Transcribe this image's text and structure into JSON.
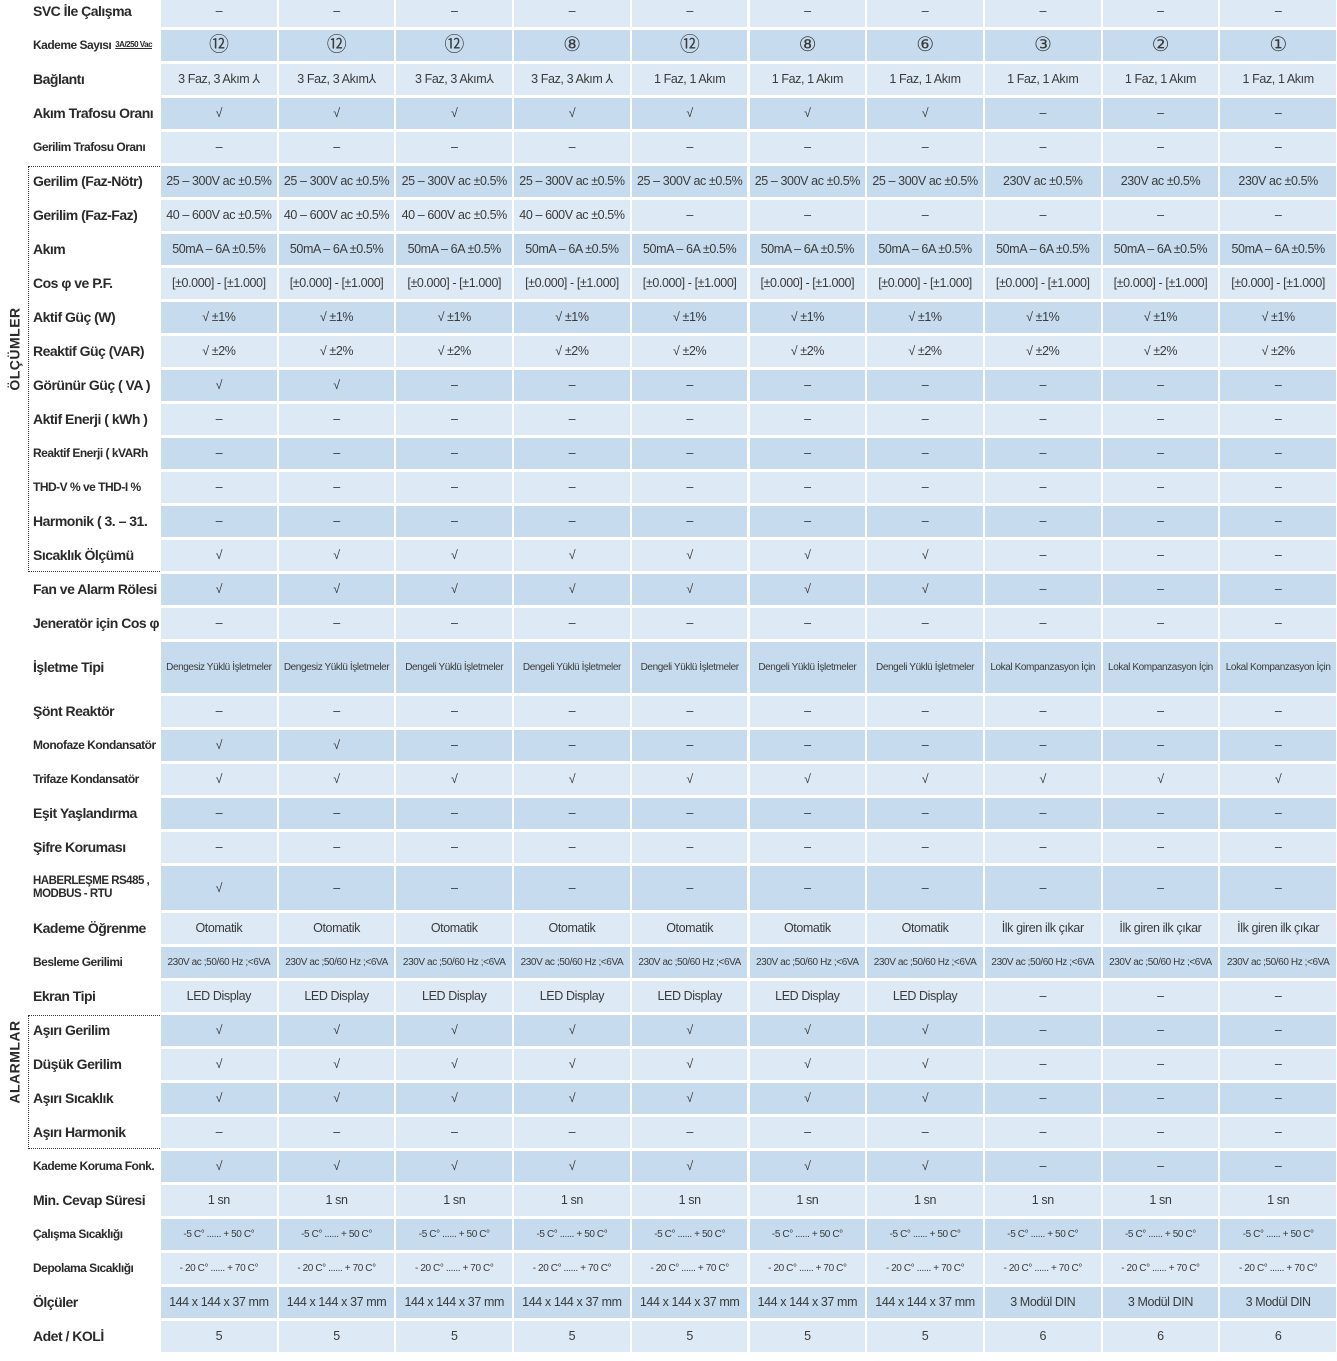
{
  "groups": [
    {
      "label": "ÖLÇÜMLER"
    },
    {
      "label": "ALARMLAR"
    }
  ],
  "table": {
    "rows": [
      {
        "label": "SVC İle Çalışma",
        "cells": [
          "–",
          "–",
          "–",
          "–",
          "–",
          "–",
          "–",
          "–",
          "–",
          "–"
        ]
      },
      {
        "label": "Kademe Sayısı",
        "note": "3A/250 Vac",
        "cells": [
          "⑫",
          "⑫",
          "⑫",
          "⑧",
          "⑫",
          "⑧",
          "⑥",
          "③",
          "②",
          "①"
        ]
      },
      {
        "label": "Bağlantı",
        "cells": [
          "3 Faz, 3 Akım ⅄",
          "3 Faz, 3 Akım⅄",
          "3 Faz, 3 Akım⅄",
          "3 Faz, 3 Akım ⅄",
          "1 Faz, 1 Akım",
          "1 Faz, 1 Akım",
          "1 Faz, 1 Akım",
          "1 Faz, 1 Akım",
          "1 Faz, 1 Akım",
          "1 Faz, 1 Akım"
        ]
      },
      {
        "label": "Akım Trafosu Oranı",
        "cells": [
          "√",
          "√",
          "√",
          "√",
          "√",
          "√",
          "√",
          "–",
          "–",
          "–"
        ]
      },
      {
        "label": "Gerilim Trafosu Oranı",
        "cells": [
          "–",
          "–",
          "–",
          "–",
          "–",
          "–",
          "–",
          "–",
          "–",
          "–"
        ]
      },
      {
        "label": "Gerilim (Faz-Nötr)",
        "cells": [
          "25 – 300V ac ±0.5%",
          "25 – 300V ac ±0.5%",
          "25 – 300V ac ±0.5%",
          "25 – 300V ac ±0.5%",
          "25 – 300V ac ±0.5%",
          "25 – 300V ac ±0.5%",
          "25 – 300V ac ±0.5%",
          "230V ac ±0.5%",
          "230V ac ±0.5%",
          "230V ac ±0.5%"
        ]
      },
      {
        "label": "Gerilim (Faz-Faz)",
        "cells": [
          "40 – 600V ac ±0.5%",
          "40 – 600V ac ±0.5%",
          "40 – 600V ac ±0.5%",
          "40 – 600V ac ±0.5%",
          "–",
          "–",
          "–",
          "–",
          "–",
          "–"
        ]
      },
      {
        "label": "Akım",
        "cells": [
          "50mA – 6A ±0.5%",
          "50mA – 6A ±0.5%",
          "50mA – 6A ±0.5%",
          "50mA – 6A ±0.5%",
          "50mA – 6A ±0.5%",
          "50mA – 6A ±0.5%",
          "50mA – 6A ±0.5%",
          "50mA – 6A ±0.5%",
          "50mA – 6A ±0.5%",
          "50mA – 6A ±0.5%"
        ]
      },
      {
        "label": "Cos φ ve P.F.",
        "cells": [
          "[±0.000] - [±1.000]",
          "[±0.000] - [±1.000]",
          "[±0.000] - [±1.000]",
          "[±0.000] - [±1.000]",
          "[±0.000] - [±1.000]",
          "[±0.000] - [±1.000]",
          "[±0.000] - [±1.000]",
          "[±0.000] - [±1.000]",
          "[±0.000] - [±1.000]",
          "[±0.000] - [±1.000]"
        ]
      },
      {
        "label": "Aktif Güç (W)",
        "cells": [
          "√ ±1%",
          "√ ±1%",
          "√ ±1%",
          "√ ±1%",
          "√ ±1%",
          "√ ±1%",
          "√ ±1%",
          "√ ±1%",
          "√ ±1%",
          "√ ±1%"
        ]
      },
      {
        "label": "Reaktif Güç (VAR)",
        "cells": [
          "√ ±2%",
          "√ ±2%",
          "√ ±2%",
          "√ ±2%",
          "√ ±2%",
          "√ ±2%",
          "√ ±2%",
          "√ ±2%",
          "√ ±2%",
          "√ ±2%"
        ]
      },
      {
        "label": "Görünür Güç ( VA )",
        "cells": [
          "√",
          "√",
          "–",
          "–",
          "–",
          "–",
          "–",
          "–",
          "–",
          "–"
        ]
      },
      {
        "label": "Aktif Enerji ( kWh )",
        "cells": [
          "–",
          "–",
          "–",
          "–",
          "–",
          "–",
          "–",
          "–",
          "–",
          "–"
        ]
      },
      {
        "label": "Reaktif Enerji ( kVARh",
        "cells": [
          "–",
          "–",
          "–",
          "–",
          "–",
          "–",
          "–",
          "–",
          "–",
          "–"
        ]
      },
      {
        "label": "THD-V % ve THD-I %",
        "cells": [
          "–",
          "–",
          "–",
          "–",
          "–",
          "–",
          "–",
          "–",
          "–",
          "–"
        ]
      },
      {
        "label": "Harmonik ( 3. – 31.",
        "cells": [
          "–",
          "–",
          "–",
          "–",
          "–",
          "–",
          "–",
          "–",
          "–",
          "–"
        ]
      },
      {
        "label": "Sıcaklık Ölçümü",
        "cells": [
          "√",
          "√",
          "√",
          "√",
          "√",
          "√",
          "√",
          "–",
          "–",
          "–"
        ]
      },
      {
        "label": "Fan ve Alarm Rölesi",
        "cells": [
          "√",
          "√",
          "√",
          "√",
          "√",
          "√",
          "√",
          "–",
          "–",
          "–"
        ]
      },
      {
        "label": "Jeneratör için Cos φ",
        "cells": [
          "–",
          "–",
          "–",
          "–",
          "–",
          "–",
          "–",
          "–",
          "–",
          "–"
        ]
      },
      {
        "label": "İşletme Tipi",
        "cells": [
          "Dengesiz Yüklü İşletmeler",
          "Dengesiz Yüklü İşletmeler",
          "Dengeli Yüklü İşletmeler",
          "Dengeli Yüklü İşletmeler",
          "Dengeli Yüklü İşletmeler",
          "Dengeli Yüklü İşletmeler",
          "Dengeli Yüklü İşletmeler",
          "Lokal Kompanzasyon İçin",
          "Lokal Kompanzasyon İçin",
          "Lokal Kompanzasyon İçin"
        ]
      },
      {
        "label": "Şönt Reaktör",
        "cells": [
          "–",
          "–",
          "–",
          "–",
          "–",
          "–",
          "–",
          "–",
          "–",
          "–"
        ]
      },
      {
        "label": "Monofaze Kondansatör",
        "cells": [
          "√",
          "√",
          "–",
          "–",
          "–",
          "–",
          "–",
          "–",
          "–",
          "–"
        ]
      },
      {
        "label": "Trifaze Kondansatör",
        "cells": [
          "√",
          "√",
          "√",
          "√",
          "√",
          "√",
          "√",
          "√",
          "√",
          "√"
        ]
      },
      {
        "label": "Eşit Yaşlandırma",
        "cells": [
          "–",
          "–",
          "–",
          "–",
          "–",
          "–",
          "–",
          "–",
          "–",
          "–"
        ]
      },
      {
        "label": "Şifre Koruması",
        "cells": [
          "–",
          "–",
          "–",
          "–",
          "–",
          "–",
          "–",
          "–",
          "–",
          "–"
        ]
      },
      {
        "label": "HABERLEŞME RS485 , MODBUS - RTU",
        "cells": [
          "√",
          "–",
          "–",
          "–",
          "–",
          "–",
          "–",
          "–",
          "–",
          "–"
        ]
      },
      {
        "label": "Kademe Öğrenme",
        "cells": [
          "Otomatik",
          "Otomatik",
          "Otomatik",
          "Otomatik",
          "Otomatik",
          "Otomatik",
          "Otomatik",
          "İlk giren ilk çıkar",
          "İlk giren ilk çıkar",
          "İlk giren ilk çıkar"
        ]
      },
      {
        "label": "Besleme Gerilimi",
        "cells": [
          "230V ac ;50/60 Hz ;<6VA",
          "230V ac ;50/60 Hz ;<6VA",
          "230V ac ;50/60 Hz ;<6VA",
          "230V ac ;50/60 Hz ;<6VA",
          "230V ac ;50/60 Hz ;<6VA",
          "230V ac ;50/60 Hz ;<6VA",
          "230V ac ;50/60 Hz ;<6VA",
          "230V ac ;50/60 Hz ;<6VA",
          "230V ac ;50/60 Hz ;<6VA",
          "230V ac ;50/60 Hz ;<6VA"
        ]
      },
      {
        "label": "Ekran Tipi",
        "cells": [
          "LED Display",
          "LED Display",
          "LED Display",
          "LED Display",
          "LED Display",
          "LED Display",
          "LED Display",
          "–",
          "–",
          "–"
        ]
      },
      {
        "label": "Aşırı Gerilim",
        "cells": [
          "√",
          "√",
          "√",
          "√",
          "√",
          "√",
          "√",
          "–",
          "–",
          "–"
        ]
      },
      {
        "label": "Düşük Gerilim",
        "cells": [
          "√",
          "√",
          "√",
          "√",
          "√",
          "√",
          "√",
          "–",
          "–",
          "–"
        ]
      },
      {
        "label": "Aşırı Sıcaklık",
        "cells": [
          "√",
          "√",
          "√",
          "√",
          "√",
          "√",
          "√",
          "–",
          "–",
          "–"
        ]
      },
      {
        "label": "Aşırı Harmonik",
        "cells": [
          "–",
          "–",
          "–",
          "–",
          "–",
          "–",
          "–",
          "–",
          "–",
          "–"
        ]
      },
      {
        "label": "Kademe Koruma Fonk.",
        "cells": [
          "√",
          "√",
          "√",
          "√",
          "√",
          "√",
          "√",
          "–",
          "–",
          "–"
        ]
      },
      {
        "label": "Min. Cevap Süresi",
        "cells": [
          "1 sn",
          "1 sn",
          "1 sn",
          "1 sn",
          "1 sn",
          "1 sn",
          "1 sn",
          "1 sn",
          "1 sn",
          "1 sn"
        ]
      },
      {
        "label": "Çalışma Sıcaklığı",
        "cells": [
          "-5 C° ...... + 50 C°",
          "-5 C° ...... + 50 C°",
          "-5 C° ...... + 50 C°",
          "-5 C° ...... + 50 C°",
          "-5 C° ...... + 50 C°",
          "-5 C° ...... + 50 C°",
          "-5 C° ...... + 50 C°",
          "-5 C° ...... + 50 C°",
          "-5 C° ...... + 50 C°",
          "-5 C° ...... + 50 C°"
        ]
      },
      {
        "label": "Depolama Sıcaklığı",
        "cells": [
          "- 20 C° ...... + 70 C°",
          "- 20 C° ...... + 70 C°",
          "- 20 C° ...... + 70 C°",
          "- 20 C° ...... + 70 C°",
          "- 20 C° ...... + 70 C°",
          "- 20 C° ...... + 70 C°",
          "- 20 C° ...... + 70 C°",
          "- 20 C° ...... + 70 C°",
          "- 20 C° ...... + 70 C°",
          "- 20 C° ...... + 70 C°"
        ]
      },
      {
        "label": "Ölçüler",
        "cells": [
          "144 x 144 x 37 mm",
          "144 x 144 x 37 mm",
          "144 x 144 x 37 mm",
          "144 x 144 x 37 mm",
          "144 x 144 x 37 mm",
          "144 x 144 x 37 mm",
          "144 x 144 x 37 mm",
          "3 Modül DIN",
          "3 Modül DIN",
          "3 Modül DIN"
        ]
      },
      {
        "label": "Adet / KOLİ",
        "cells": [
          "5",
          "5",
          "5",
          "5",
          "5",
          "5",
          "5",
          "6",
          "6",
          "6"
        ]
      }
    ]
  }
}
